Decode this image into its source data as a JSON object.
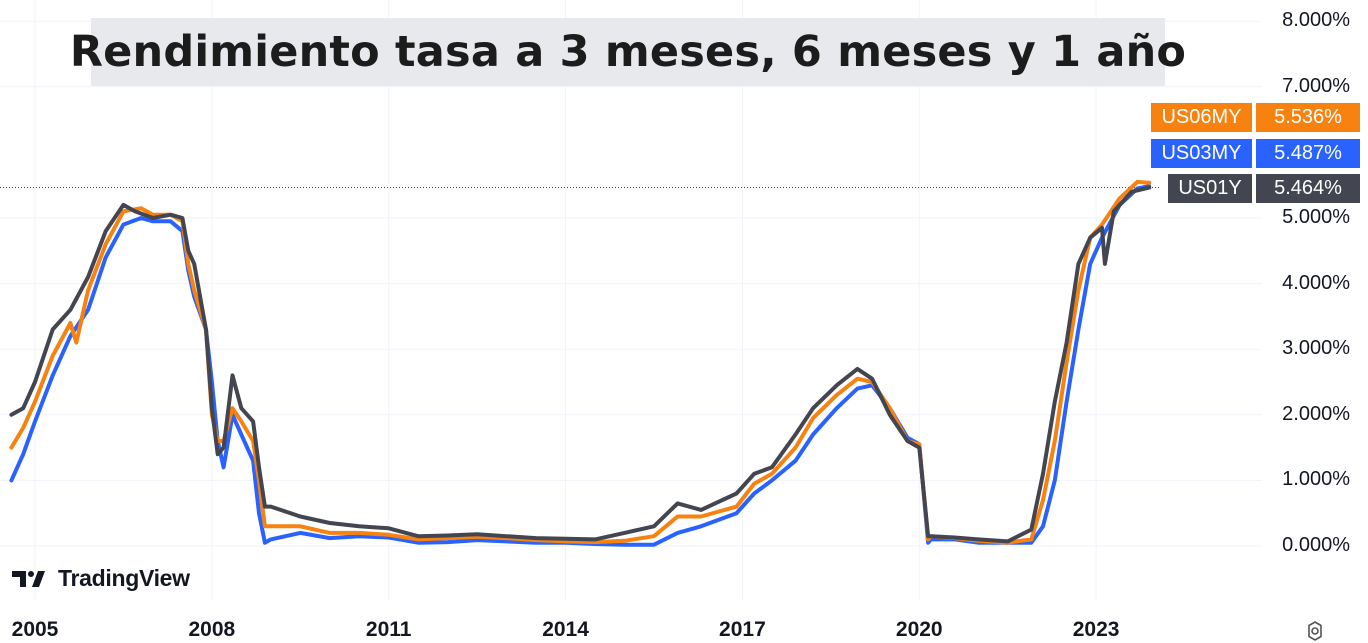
{
  "chart_data": {
    "type": "line",
    "title": "Rendimiento tasa a 3 meses, 6 meses y 1 año",
    "x_range": [
      2004.6,
      2024.9
    ],
    "ylim": [
      -0.6,
      8.1
    ],
    "y_ticks": [
      {
        "v": 0,
        "label": "0.000%"
      },
      {
        "v": 1,
        "label": "1.000%"
      },
      {
        "v": 2,
        "label": "2.000%"
      },
      {
        "v": 3,
        "label": "3.000%"
      },
      {
        "v": 4,
        "label": "4.000%"
      },
      {
        "v": 5,
        "label": "5.000%"
      },
      {
        "v": 7,
        "label": "7.000%"
      },
      {
        "v": 8,
        "label": "8.000%"
      }
    ],
    "x_ticks": [
      {
        "v": 2005,
        "label": "2005"
      },
      {
        "v": 2008,
        "label": "2008"
      },
      {
        "v": 2011,
        "label": "2011"
      },
      {
        "v": 2014,
        "label": "2014"
      },
      {
        "v": 2017,
        "label": "2017"
      },
      {
        "v": 2020,
        "label": "2020"
      },
      {
        "v": 2023,
        "label": "2023"
      }
    ],
    "grid": true,
    "series": [
      {
        "name": "US03MY",
        "color": "#2962ff",
        "last_value_label": "5.487%",
        "points": [
          [
            2004.6,
            1.0
          ],
          [
            2004.8,
            1.4
          ],
          [
            2005.0,
            1.9
          ],
          [
            2005.3,
            2.6
          ],
          [
            2005.6,
            3.2
          ],
          [
            2005.9,
            3.6
          ],
          [
            2006.2,
            4.4
          ],
          [
            2006.5,
            4.9
          ],
          [
            2006.8,
            5.0
          ],
          [
            2007.0,
            4.95
          ],
          [
            2007.3,
            4.95
          ],
          [
            2007.5,
            4.8
          ],
          [
            2007.6,
            4.2
          ],
          [
            2007.7,
            3.8
          ],
          [
            2007.9,
            3.3
          ],
          [
            2008.0,
            2.5
          ],
          [
            2008.1,
            1.6
          ],
          [
            2008.2,
            1.2
          ],
          [
            2008.35,
            2.0
          ],
          [
            2008.5,
            1.7
          ],
          [
            2008.7,
            1.3
          ],
          [
            2008.8,
            0.5
          ],
          [
            2008.9,
            0.05
          ],
          [
            2009.0,
            0.1
          ],
          [
            2009.5,
            0.2
          ],
          [
            2010.0,
            0.12
          ],
          [
            2010.5,
            0.15
          ],
          [
            2011.0,
            0.13
          ],
          [
            2011.5,
            0.05
          ],
          [
            2012.0,
            0.06
          ],
          [
            2012.5,
            0.09
          ],
          [
            2013.0,
            0.07
          ],
          [
            2013.5,
            0.05
          ],
          [
            2014.0,
            0.05
          ],
          [
            2014.5,
            0.03
          ],
          [
            2015.0,
            0.02
          ],
          [
            2015.5,
            0.02
          ],
          [
            2015.9,
            0.2
          ],
          [
            2016.3,
            0.3
          ],
          [
            2016.9,
            0.5
          ],
          [
            2017.2,
            0.8
          ],
          [
            2017.5,
            1.0
          ],
          [
            2017.9,
            1.3
          ],
          [
            2018.2,
            1.7
          ],
          [
            2018.6,
            2.1
          ],
          [
            2018.95,
            2.4
          ],
          [
            2019.2,
            2.45
          ],
          [
            2019.5,
            2.1
          ],
          [
            2019.8,
            1.65
          ],
          [
            2020.0,
            1.55
          ],
          [
            2020.15,
            0.05
          ],
          [
            2020.2,
            0.1
          ],
          [
            2020.6,
            0.1
          ],
          [
            2021.0,
            0.05
          ],
          [
            2021.5,
            0.05
          ],
          [
            2021.9,
            0.05
          ],
          [
            2022.1,
            0.3
          ],
          [
            2022.3,
            1.0
          ],
          [
            2022.5,
            2.2
          ],
          [
            2022.7,
            3.3
          ],
          [
            2022.9,
            4.3
          ],
          [
            2023.1,
            4.7
          ],
          [
            2023.4,
            5.2
          ],
          [
            2023.7,
            5.45
          ],
          [
            2023.9,
            5.487
          ]
        ]
      },
      {
        "name": "US06MY",
        "color": "#f7820f",
        "last_value_label": "5.536%",
        "points": [
          [
            2004.6,
            1.5
          ],
          [
            2004.8,
            1.8
          ],
          [
            2005.0,
            2.2
          ],
          [
            2005.3,
            2.9
          ],
          [
            2005.6,
            3.4
          ],
          [
            2005.7,
            3.1
          ],
          [
            2005.9,
            3.9
          ],
          [
            2006.2,
            4.6
          ],
          [
            2006.5,
            5.1
          ],
          [
            2006.8,
            5.15
          ],
          [
            2007.0,
            5.05
          ],
          [
            2007.3,
            5.05
          ],
          [
            2007.5,
            4.95
          ],
          [
            2007.6,
            4.3
          ],
          [
            2007.7,
            3.9
          ],
          [
            2007.9,
            3.3
          ],
          [
            2008.0,
            2.0
          ],
          [
            2008.1,
            1.6
          ],
          [
            2008.2,
            1.6
          ],
          [
            2008.35,
            2.1
          ],
          [
            2008.5,
            1.9
          ],
          [
            2008.7,
            1.6
          ],
          [
            2008.8,
            1.0
          ],
          [
            2008.9,
            0.3
          ],
          [
            2009.0,
            0.3
          ],
          [
            2009.5,
            0.3
          ],
          [
            2010.0,
            0.2
          ],
          [
            2010.5,
            0.2
          ],
          [
            2011.0,
            0.17
          ],
          [
            2011.5,
            0.1
          ],
          [
            2012.0,
            0.12
          ],
          [
            2012.5,
            0.14
          ],
          [
            2013.0,
            0.12
          ],
          [
            2013.5,
            0.09
          ],
          [
            2014.0,
            0.07
          ],
          [
            2014.5,
            0.06
          ],
          [
            2015.0,
            0.08
          ],
          [
            2015.5,
            0.15
          ],
          [
            2015.9,
            0.45
          ],
          [
            2016.3,
            0.45
          ],
          [
            2016.9,
            0.6
          ],
          [
            2017.2,
            0.95
          ],
          [
            2017.5,
            1.1
          ],
          [
            2017.9,
            1.5
          ],
          [
            2018.2,
            1.95
          ],
          [
            2018.6,
            2.3
          ],
          [
            2018.95,
            2.55
          ],
          [
            2019.2,
            2.5
          ],
          [
            2019.5,
            2.1
          ],
          [
            2019.8,
            1.6
          ],
          [
            2020.0,
            1.55
          ],
          [
            2020.15,
            0.1
          ],
          [
            2020.2,
            0.15
          ],
          [
            2020.6,
            0.12
          ],
          [
            2021.0,
            0.08
          ],
          [
            2021.5,
            0.05
          ],
          [
            2021.9,
            0.1
          ],
          [
            2022.1,
            0.7
          ],
          [
            2022.3,
            1.6
          ],
          [
            2022.5,
            2.8
          ],
          [
            2022.7,
            3.9
          ],
          [
            2022.9,
            4.7
          ],
          [
            2023.1,
            4.9
          ],
          [
            2023.4,
            5.3
          ],
          [
            2023.7,
            5.55
          ],
          [
            2023.9,
            5.536
          ]
        ]
      },
      {
        "name": "US01Y",
        "color": "#434651",
        "last_value_label": "5.464%",
        "points": [
          [
            2004.6,
            2.0
          ],
          [
            2004.8,
            2.1
          ],
          [
            2005.0,
            2.5
          ],
          [
            2005.3,
            3.3
          ],
          [
            2005.6,
            3.6
          ],
          [
            2005.9,
            4.1
          ],
          [
            2006.2,
            4.8
          ],
          [
            2006.5,
            5.2
          ],
          [
            2006.7,
            5.1
          ],
          [
            2007.0,
            5.0
          ],
          [
            2007.3,
            5.05
          ],
          [
            2007.5,
            5.0
          ],
          [
            2007.6,
            4.5
          ],
          [
            2007.7,
            4.3
          ],
          [
            2007.9,
            3.3
          ],
          [
            2008.0,
            2.1
          ],
          [
            2008.1,
            1.4
          ],
          [
            2008.2,
            1.5
          ],
          [
            2008.35,
            2.6
          ],
          [
            2008.5,
            2.1
          ],
          [
            2008.7,
            1.9
          ],
          [
            2008.8,
            1.2
          ],
          [
            2008.9,
            0.6
          ],
          [
            2009.0,
            0.6
          ],
          [
            2009.5,
            0.45
          ],
          [
            2010.0,
            0.35
          ],
          [
            2010.5,
            0.3
          ],
          [
            2011.0,
            0.27
          ],
          [
            2011.5,
            0.15
          ],
          [
            2012.0,
            0.16
          ],
          [
            2012.5,
            0.18
          ],
          [
            2013.0,
            0.15
          ],
          [
            2013.5,
            0.12
          ],
          [
            2014.0,
            0.11
          ],
          [
            2014.5,
            0.1
          ],
          [
            2015.0,
            0.2
          ],
          [
            2015.5,
            0.3
          ],
          [
            2015.9,
            0.65
          ],
          [
            2016.3,
            0.55
          ],
          [
            2016.9,
            0.8
          ],
          [
            2017.2,
            1.1
          ],
          [
            2017.5,
            1.2
          ],
          [
            2017.9,
            1.7
          ],
          [
            2018.2,
            2.1
          ],
          [
            2018.6,
            2.45
          ],
          [
            2018.95,
            2.7
          ],
          [
            2019.2,
            2.55
          ],
          [
            2019.5,
            2.0
          ],
          [
            2019.8,
            1.6
          ],
          [
            2020.0,
            1.5
          ],
          [
            2020.15,
            0.15
          ],
          [
            2020.2,
            0.15
          ],
          [
            2020.6,
            0.13
          ],
          [
            2021.0,
            0.1
          ],
          [
            2021.5,
            0.07
          ],
          [
            2021.9,
            0.25
          ],
          [
            2022.1,
            1.1
          ],
          [
            2022.3,
            2.2
          ],
          [
            2022.5,
            3.1
          ],
          [
            2022.7,
            4.3
          ],
          [
            2022.9,
            4.7
          ],
          [
            2023.1,
            4.85
          ],
          [
            2023.15,
            4.3
          ],
          [
            2023.3,
            5.1
          ],
          [
            2023.6,
            5.4
          ],
          [
            2023.9,
            5.464
          ]
        ]
      }
    ],
    "last_value_line": 5.464
  },
  "ui": {
    "brand": "TradingView",
    "settings_icon": "gear-icon"
  }
}
